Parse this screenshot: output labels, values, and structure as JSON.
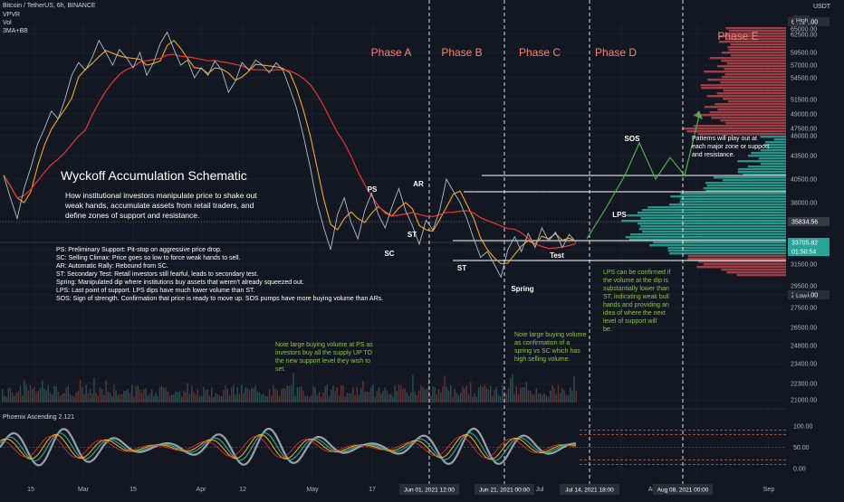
{
  "header": {
    "symbol": "Bitcoin / TetherUS, 6h, BINANCE",
    "indicators": [
      "VPVR",
      "Vol",
      "3MA+BB"
    ],
    "currency": "USDT"
  },
  "lower_pane": {
    "title": "Phoenix Ascending 2.121",
    "ticks": [
      "100.00",
      "50.00",
      "0.00"
    ]
  },
  "chart_data": {
    "type": "line",
    "series": [
      {
        "values": [
          41000,
          38500,
          36000,
          39500,
          42000,
          45000,
          47500,
          49500,
          48500,
          51500,
          55000,
          57500,
          56000,
          58500,
          61500,
          59500,
          57000,
          60000,
          58500,
          56500,
          59500,
          55000,
          57500,
          61000,
          63500,
          60000,
          57000,
          58000,
          54500,
          56500,
          55000,
          57800,
          56000,
          52500,
          54000,
          57500,
          56000,
          58000,
          57000,
          55500,
          57500,
          56000,
          53000,
          50000,
          46000,
          42000,
          38000,
          35000,
          33000,
          36500,
          38500,
          35500,
          34000,
          37000,
          39000,
          36500,
          35000,
          37500,
          39500,
          37000,
          35200,
          33500,
          35800,
          34800,
          37000,
          40500,
          39200,
          38000,
          36000,
          34000,
          32200,
          32800,
          31500,
          30300,
          33000,
          34200,
          32800,
          34500,
          33200,
          35000,
          33800,
          34600,
          33200,
          34400,
          33700
        ]
      }
    ],
    "yticks": [
      "65000.00",
      "62500.00",
      "59500.00",
      "57000.00",
      "54500.00",
      "51500.00",
      "49000.00",
      "47500.00",
      "46000.00",
      "43500.00",
      "40500.00",
      "38000.00",
      "35500.00",
      "33000.00",
      "31500.00",
      "29500.00",
      "28000.00",
      "27500.00",
      "26500.00",
      "24800.00",
      "23400.00",
      "22300.00",
      "21000.00"
    ],
    "ylim": [
      21000,
      65500
    ],
    "price_labels": {
      "high": "64854.00",
      "high_tag": "High",
      "low": "28805.00",
      "low_tag": "Low",
      "mid": "35834.56",
      "current": "33705.82",
      "countdown": "01:50:54"
    },
    "xticks": [
      "15",
      "Mar",
      "15",
      "Apr",
      "12",
      "May",
      "17"
    ],
    "xticks_right": [
      "Jul",
      "Aug",
      "Sep"
    ],
    "date_labels": [
      "Jun 01, 2021 12:00",
      "Jun 21, 2021 00:00",
      "Jul 14, 2021 18:00",
      "Aug 08, 2021 00:00"
    ],
    "phases": [
      "Phase A",
      "Phase B",
      "Phase C",
      "Phase D",
      "Phase E"
    ],
    "events": {
      "ps": "PS",
      "sc": "SC",
      "ar": "AR",
      "st1": "ST",
      "st2": "ST",
      "spring": "Spring",
      "test": "Test",
      "lps": "LPS",
      "sos": "SOS"
    },
    "title": "Wyckoff Accumulation Schematic",
    "subtitle": "How institutional investors manipulate price to shake out weak hands, accumulate assets from retail traders, and define zones of support and resistance.",
    "legend": [
      "PS: Preliminary Support: Pit-stop on aggressive price drop.",
      "SC: Selling Climax: Price goes so low to force weak hands to sell.",
      "AR: Automatic Rally: Rebound from SC.",
      "ST: Secondary Test: Retail investors still fearful, leads to secondary test.",
      "Spring: Manipulated dip where institutions buy assets that weren't already squeezed out.",
      "LPS: Last point of support. LPS dips have much lower volume than ST.",
      "SOS: Sign of strength. Confirmation that price is ready to move up. SOS pumps have more buying volume than ARs."
    ],
    "notes": {
      "ps_volume": "Note large buying volume at PS as investors buy all the supply UP TO the new support level they wish to set.",
      "spring_volume": "Note large buying volume as confirmation of a spring vs SC which has high selling volume.",
      "lps": "LPS can be confirmed if the volume at the dip is substantially lower than ST, indicating weak bull hands and providing an idea of where the next level of support will be.",
      "patterns": "Patterns will play out at each major zone or support and resistance."
    },
    "colors": {
      "price": "#b0bec5",
      "fast_ma": "#f5a623",
      "slow_ma": "#e53935",
      "projection": "#4caf50",
      "phase_text": "#f0857a",
      "note_text": "#8bc34a"
    }
  }
}
